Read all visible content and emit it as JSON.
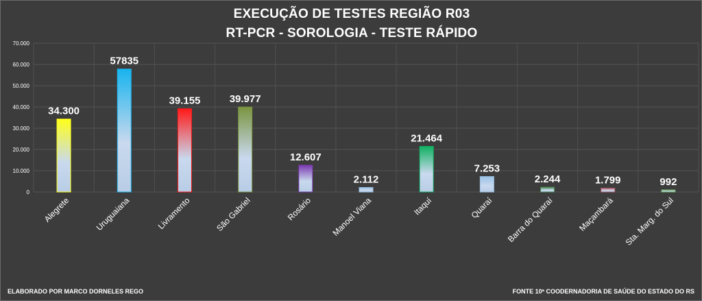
{
  "title": "EXECUÇÃO DE TESTES REGIÃO R03",
  "subtitle": "RT-PCR - SOROLOGIA - TESTE RÁPIDO",
  "footer": {
    "left": "ELABORADO  POR MARCO  DORNELES REGO",
    "right": "FONTE 10ª COODERNADORIA  DE SAÚDE DO ESTADO DO RS"
  },
  "chart_data": {
    "type": "bar",
    "title": "EXECUÇÃO DE TESTES REGIÃO R03",
    "subtitle": "RT-PCR - SOROLOGIA - TESTE RÁPIDO",
    "xlabel": "",
    "ylabel": "",
    "ylim": [
      0,
      70000
    ],
    "yticks": [
      "0",
      "10.000",
      "20.000",
      "30.000",
      "40.000",
      "50.000",
      "60.000",
      "70.000"
    ],
    "grid": true,
    "categories": [
      "Alegrete",
      "Uruguaiana",
      "Livramento",
      "São Gabriel",
      "Rosário",
      "Manoel Viana",
      "Itaquí",
      "Quaraí",
      "Barra do Quaraí",
      "Maçambará",
      "Sta. Marg. do Sul"
    ],
    "values": [
      34300,
      57835,
      39155,
      39977,
      12607,
      2112,
      21464,
      7253,
      2244,
      1799,
      992
    ],
    "data_labels": [
      "34.300",
      "57835",
      "39.155",
      "39.977",
      "12.607",
      "2.112",
      "21.464",
      "7.253",
      "2.244",
      "1.799",
      "992"
    ],
    "colors": [
      "#ffff1a",
      "#18b4ee",
      "#ff1a1a",
      "#7a9440",
      "#7a3ab0",
      "#9bc2e6",
      "#10b060",
      "#9bc2e6",
      "#4a8a50",
      "#b05a6a",
      "#6aaa60"
    ]
  }
}
